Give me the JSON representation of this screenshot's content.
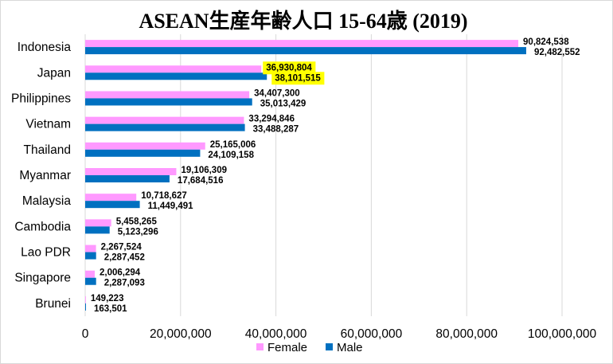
{
  "chart_data": {
    "type": "bar",
    "orientation": "horizontal",
    "title": "ASEAN生産年齢人口 15-64歳 (2019)",
    "categories": [
      "Indonesia",
      "Japan",
      "Philippines",
      "Vietnam",
      "Thailand",
      "Myanmar",
      "Malaysia",
      "Cambodia",
      "Lao PDR",
      "Singapore",
      "Brunei"
    ],
    "series": [
      {
        "name": "Female",
        "color": "#ff99ff",
        "values": [
          90824538,
          36930804,
          34407300,
          33294846,
          25165006,
          19106309,
          10718627,
          5458265,
          2267524,
          2006294,
          149223
        ],
        "labels": [
          "90,824,538",
          "36,930,804",
          "34,407,300",
          "33,294,846",
          "25,165,006",
          "19,106,309",
          "10,718,627",
          "5,458,265",
          "2,267,524",
          "2,006,294",
          "149,223"
        ]
      },
      {
        "name": "Male",
        "color": "#0070c0",
        "values": [
          92482552,
          38101515,
          35013429,
          33488287,
          24109158,
          17684516,
          11449491,
          5123296,
          2287452,
          2287093,
          163501
        ],
        "labels": [
          "92,482,552",
          "38,101,515",
          "35,013,429",
          "33,488,287",
          "24,109,158",
          "17,684,516",
          "11,449,491",
          "5,123,296",
          "2,287,452",
          "2,287,093",
          "163,501"
        ]
      }
    ],
    "highlight": {
      "category": "Japan",
      "label_background": "#ffff00"
    },
    "xlim": [
      0,
      100000000
    ],
    "x_ticks": [
      0,
      20000000,
      40000000,
      60000000,
      80000000,
      100000000
    ],
    "x_tick_labels": [
      "0",
      "20,000,000",
      "40,000,000",
      "60,000,000",
      "80,000,000",
      "100,000,000"
    ],
    "grid": true,
    "legend_position": "bottom"
  }
}
